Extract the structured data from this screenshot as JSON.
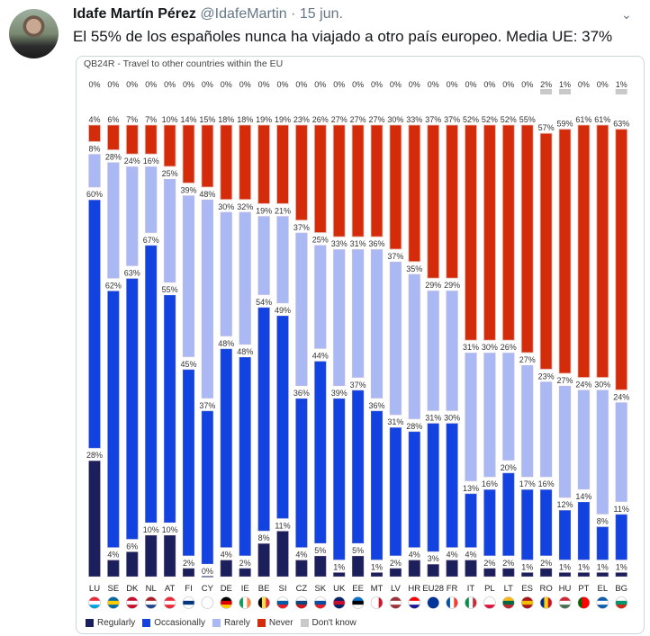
{
  "tweet": {
    "author_name": "Idafe Martín Pérez",
    "handle": "@IdafeMartin",
    "separator": "·",
    "date": "15 jun.",
    "text": "El 55% de los españoles nunca ha viajado a otro país europeo. Media UE: 37%",
    "menu_icon": "chevron-down-icon"
  },
  "chart_data": {
    "type": "bar",
    "stacked": true,
    "title": "QB24R - Travel to other countries within the EU",
    "categories": [
      "LU",
      "SE",
      "DK",
      "NL",
      "AT",
      "FI",
      "CY",
      "DE",
      "IE",
      "BE",
      "SI",
      "CZ",
      "SK",
      "UK",
      "EE",
      "MT",
      "LV",
      "HR",
      "EU28",
      "FR",
      "IT",
      "PL",
      "LT",
      "ES",
      "RO",
      "HU",
      "PT",
      "EL",
      "BG"
    ],
    "series": [
      {
        "name": "Regularly",
        "color": "#1b1f5c",
        "values": [
          28,
          4,
          6,
          10,
          10,
          2,
          0,
          4,
          2,
          8,
          11,
          4,
          5,
          1,
          5,
          1,
          2,
          4,
          3,
          4,
          4,
          2,
          2,
          1,
          2,
          1,
          1,
          1,
          1
        ]
      },
      {
        "name": "Occasionally",
        "color": "#1243e0",
        "values": [
          60,
          62,
          63,
          67,
          55,
          45,
          37,
          48,
          48,
          54,
          49,
          36,
          44,
          39,
          37,
          36,
          31,
          28,
          31,
          30,
          13,
          16,
          20,
          17,
          16,
          12,
          14,
          8,
          11
        ]
      },
      {
        "name": "Rarely",
        "color": "#aab9f4",
        "values": [
          8,
          28,
          24,
          16,
          25,
          39,
          48,
          30,
          32,
          19,
          21,
          37,
          25,
          33,
          31,
          36,
          37,
          35,
          29,
          29,
          31,
          30,
          26,
          27,
          23,
          27,
          24,
          30,
          24
        ]
      },
      {
        "name": "Never",
        "color": "#d42b0b",
        "values": [
          4,
          6,
          7,
          7,
          10,
          14,
          15,
          18,
          18,
          19,
          19,
          23,
          26,
          27,
          27,
          27,
          30,
          33,
          37,
          37,
          52,
          52,
          52,
          55,
          57,
          59,
          61,
          61,
          63
        ]
      },
      {
        "name": "Don't know",
        "color": "#c9c9c9",
        "values": [
          0,
          0,
          0,
          0,
          0,
          0,
          0,
          0,
          0,
          0,
          0,
          0,
          0,
          0,
          0,
          0,
          0,
          0,
          0,
          0,
          0,
          0,
          0,
          0,
          2,
          1,
          0,
          0,
          1
        ]
      }
    ],
    "unit": "%",
    "ylim": [
      0,
      100
    ],
    "legend_position": "bottom-left",
    "grid": false
  }
}
